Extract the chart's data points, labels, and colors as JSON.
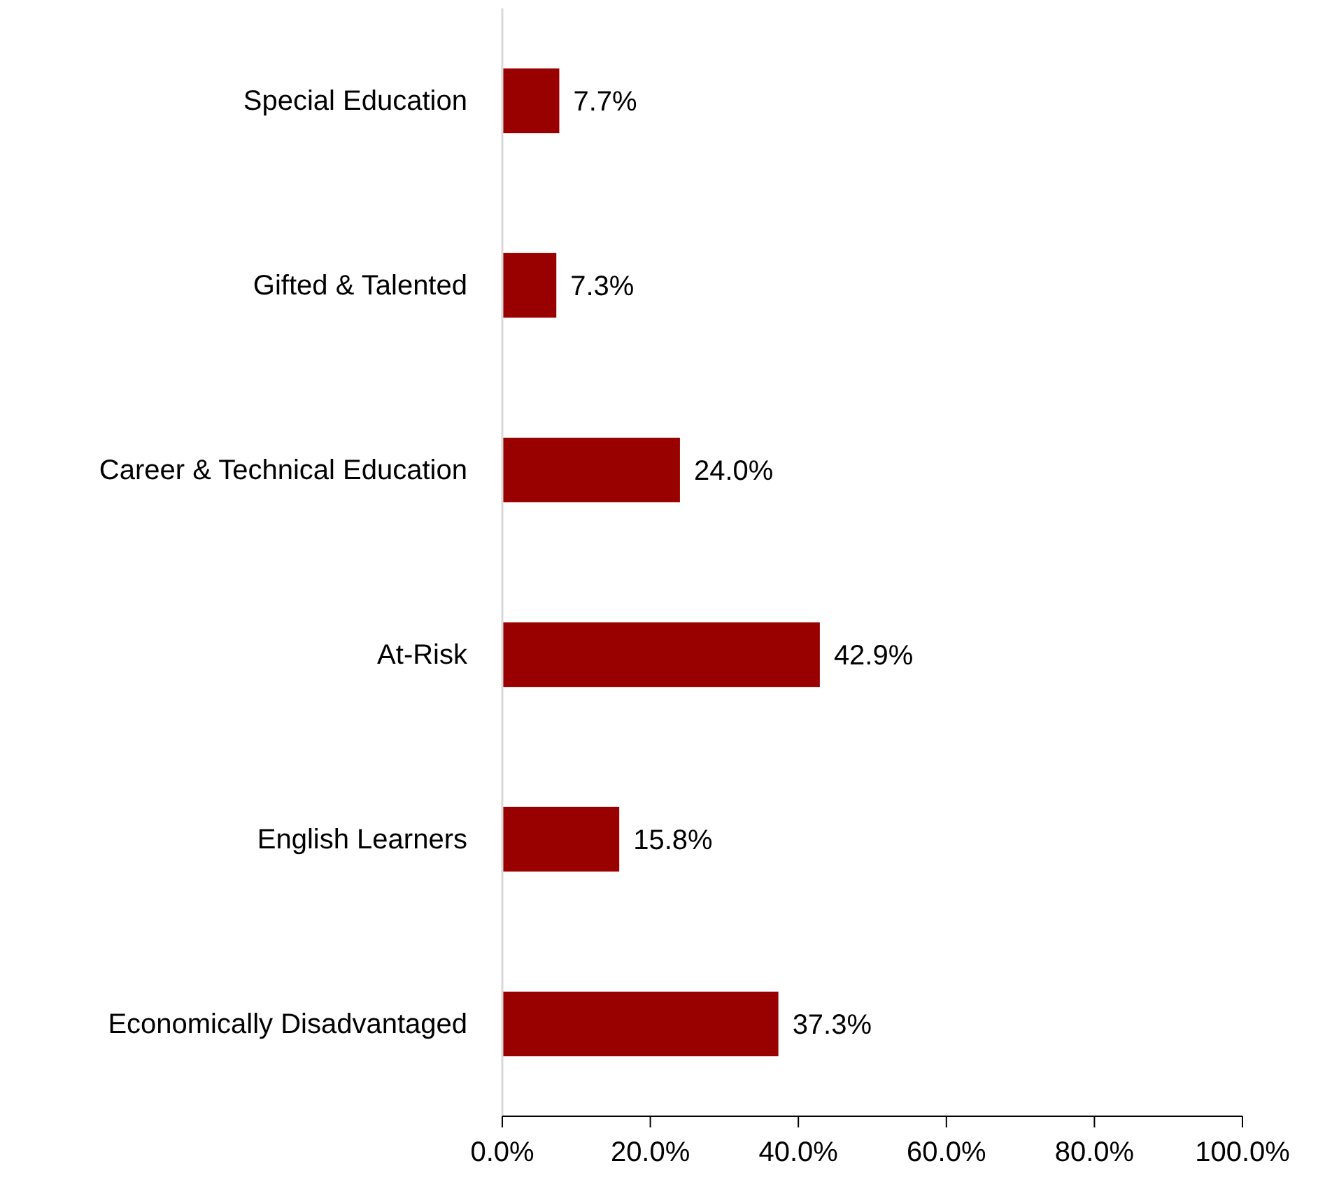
{
  "chart_data": {
    "type": "bar",
    "orientation": "horizontal",
    "categories": [
      "Special Education",
      "Gifted & Talented",
      "Career & Technical Education",
      "At-Risk",
      "English Learners",
      "Economically Disadvantaged"
    ],
    "values": [
      7.7,
      7.3,
      24.0,
      42.9,
      15.8,
      37.3
    ],
    "value_labels": [
      "7.7%",
      "7.3%",
      "24.0%",
      "42.9%",
      "15.8%",
      "37.3%"
    ],
    "color": "#990000",
    "xlim": [
      0,
      100
    ],
    "xticks": [
      {
        "value": 0,
        "label": "0.0%"
      },
      {
        "value": 20,
        "label": "20.0%"
      },
      {
        "value": 40,
        "label": "40.0%"
      },
      {
        "value": 60,
        "label": "60.0%"
      },
      {
        "value": 80,
        "label": "80.0%"
      },
      {
        "value": 100,
        "label": "100.0%"
      }
    ],
    "grid": false
  }
}
